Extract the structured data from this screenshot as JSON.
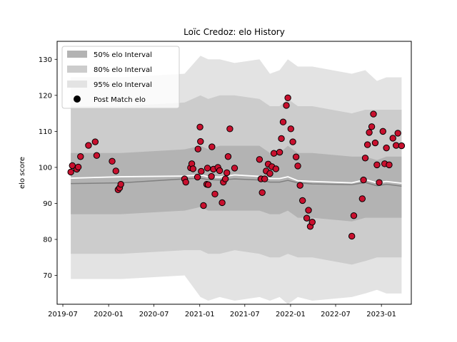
{
  "chart_data": {
    "type": "scatter",
    "title": "Loïc Credoz: elo History",
    "xlabel": "",
    "ylabel": "elo score",
    "xlim": [
      "2019-06-08",
      "2023-05-01"
    ],
    "ylim": [
      62,
      135
    ],
    "x_ticks": [
      "2019-07",
      "2020-01",
      "2020-07",
      "2021-01",
      "2021-07",
      "2022-01",
      "2022-07",
      "2023-01"
    ],
    "y_ticks": [
      70,
      80,
      90,
      100,
      110,
      120,
      130
    ],
    "legend": {
      "position": "top-left",
      "entries": [
        "50% elo Interval",
        "80% elo Interval",
        "95% elo Interval",
        "Post Match elo"
      ]
    },
    "colors": {
      "band50": "#b3b3b3",
      "band80": "#cccccc",
      "band95": "#e3e3e3",
      "mean_line": "#808080",
      "median_line": "#ffffff",
      "point_fill": "#c8102e",
      "point_edge": "#000000"
    },
    "series": [
      {
        "name": "Post Match elo",
        "points": [
          [
            "2019-08-02",
            98.7
          ],
          [
            "2019-08-08",
            100.5
          ],
          [
            "2019-08-26",
            99.5
          ],
          [
            "2019-09-01",
            100.1
          ],
          [
            "2019-09-10",
            103.0
          ],
          [
            "2019-10-12",
            106.1
          ],
          [
            "2019-11-08",
            107.1
          ],
          [
            "2019-11-14",
            103.3
          ],
          [
            "2020-01-15",
            101.7
          ],
          [
            "2020-01-30",
            99.0
          ],
          [
            "2020-02-08",
            93.8
          ],
          [
            "2020-02-14",
            94.3
          ],
          [
            "2020-02-19",
            95.3
          ],
          [
            "2020-11-01",
            96.8
          ],
          [
            "2020-11-06",
            95.9
          ],
          [
            "2020-11-25",
            99.9
          ],
          [
            "2020-11-30",
            101.0
          ],
          [
            "2020-12-05",
            99.6
          ],
          [
            "2020-12-23",
            97.3
          ],
          [
            "2020-12-25",
            105.1
          ],
          [
            "2021-01-02",
            111.2
          ],
          [
            "2021-01-04",
            107.2
          ],
          [
            "2021-01-07",
            98.9
          ],
          [
            "2021-01-16",
            89.4
          ],
          [
            "2021-01-29",
            95.3
          ],
          [
            "2021-02-01",
            99.8
          ],
          [
            "2021-02-04",
            95.2
          ],
          [
            "2021-02-17",
            97.5
          ],
          [
            "2021-02-19",
            105.7
          ],
          [
            "2021-02-25",
            99.5
          ],
          [
            "2021-03-03",
            92.6
          ],
          [
            "2021-03-15",
            100.0
          ],
          [
            "2021-03-22",
            99.1
          ],
          [
            "2021-04-01",
            90.2
          ],
          [
            "2021-04-06",
            95.9
          ],
          [
            "2021-04-14",
            96.8
          ],
          [
            "2021-04-20",
            98.5
          ],
          [
            "2021-04-25",
            103.0
          ],
          [
            "2021-05-02",
            110.7
          ],
          [
            "2021-05-21",
            99.8
          ],
          [
            "2021-08-29",
            102.2
          ],
          [
            "2021-09-04",
            96.8
          ],
          [
            "2021-09-09",
            93.0
          ],
          [
            "2021-09-19",
            96.8
          ],
          [
            "2021-09-25",
            99.0
          ],
          [
            "2021-10-03",
            100.9
          ],
          [
            "2021-10-10",
            98.3
          ],
          [
            "2021-10-18",
            100.2
          ],
          [
            "2021-10-26",
            103.9
          ],
          [
            "2021-11-03",
            99.6
          ],
          [
            "2021-11-18",
            104.2
          ],
          [
            "2021-11-25",
            108.0
          ],
          [
            "2021-12-02",
            112.6
          ],
          [
            "2021-12-15",
            117.2
          ],
          [
            "2021-12-21",
            119.3
          ],
          [
            "2022-01-02",
            110.7
          ],
          [
            "2022-01-10",
            107.1
          ],
          [
            "2022-01-23",
            102.9
          ],
          [
            "2022-01-30",
            100.4
          ],
          [
            "2022-02-08",
            95.0
          ],
          [
            "2022-02-18",
            90.8
          ],
          [
            "2022-03-07",
            85.9
          ],
          [
            "2022-03-14",
            88.1
          ],
          [
            "2022-03-21",
            83.6
          ],
          [
            "2022-03-29",
            84.8
          ],
          [
            "2022-09-04",
            80.9
          ],
          [
            "2022-09-12",
            86.6
          ],
          [
            "2022-10-16",
            91.3
          ],
          [
            "2022-10-21",
            96.5
          ],
          [
            "2022-10-28",
            102.6
          ],
          [
            "2022-11-06",
            106.3
          ],
          [
            "2022-11-13",
            109.7
          ],
          [
            "2022-11-23",
            111.3
          ],
          [
            "2022-11-30",
            114.8
          ],
          [
            "2022-12-07",
            106.8
          ],
          [
            "2022-12-14",
            100.7
          ],
          [
            "2022-12-23",
            95.8
          ],
          [
            "2023-01-07",
            110.0
          ],
          [
            "2023-01-14",
            101.0
          ],
          [
            "2023-01-21",
            105.4
          ],
          [
            "2023-02-01",
            100.7
          ],
          [
            "2023-02-16",
            108.1
          ],
          [
            "2023-03-01",
            106.1
          ],
          [
            "2023-03-08",
            109.5
          ],
          [
            "2023-03-23",
            106.0
          ]
        ]
      }
    ],
    "bands": {
      "x": [
        "2019-08-02",
        "2020-02-19",
        "2020-11-01",
        "2021-01-04",
        "2021-02-04",
        "2021-03-22",
        "2021-05-21",
        "2021-08-29",
        "2021-10-10",
        "2021-11-18",
        "2021-12-21",
        "2022-01-30",
        "2022-03-29",
        "2022-09-04",
        "2022-10-28",
        "2022-12-14",
        "2023-01-21",
        "2023-03-23"
      ],
      "ci95_upper": [
        125,
        125,
        126,
        131,
        130,
        130,
        129,
        130,
        126,
        127,
        130,
        128,
        128,
        126,
        127,
        124,
        125,
        125
      ],
      "ci80_upper": [
        117,
        117,
        118,
        120,
        119,
        120,
        120,
        119,
        117,
        117,
        119,
        117,
        117,
        115,
        116,
        116,
        116,
        116
      ],
      "ci50_upper": [
        104,
        104,
        105,
        106,
        105,
        106,
        106,
        106,
        104,
        104,
        106,
        104,
        104,
        103,
        103,
        102,
        103,
        103
      ],
      "mean": [
        95.5,
        95.7,
        96.8,
        97.0,
        96.6,
        96.5,
        96.8,
        96.5,
        95.9,
        95.9,
        96.4,
        95.7,
        95.4,
        95.2,
        95.8,
        94.9,
        95.3,
        94.8
      ],
      "median": [
        97.0,
        97.4,
        97.6,
        97.9,
        97.4,
        97.3,
        97.9,
        97.5,
        96.9,
        96.9,
        97.4,
        96.3,
        96.1,
        95.7,
        96.6,
        95.7,
        96.1,
        95.6
      ],
      "ci50_lower": [
        87,
        87,
        88,
        89,
        88,
        88,
        88,
        88,
        87,
        87,
        88,
        86,
        86,
        85,
        86,
        86,
        86,
        86
      ],
      "ci80_lower": [
        76,
        76,
        77,
        77,
        76,
        76,
        77,
        76,
        75,
        75,
        76,
        75,
        75,
        73,
        74,
        75,
        75,
        75
      ],
      "ci95_lower": [
        69,
        69,
        70,
        64,
        63,
        64,
        63,
        64,
        63,
        64,
        62,
        64,
        63,
        64,
        65,
        66,
        65,
        65
      ]
    }
  }
}
